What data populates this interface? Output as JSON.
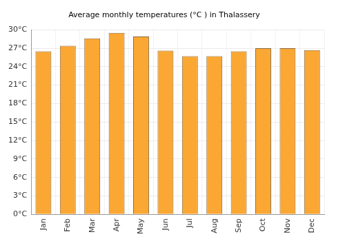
{
  "chart_data": {
    "type": "bar",
    "title": "Average monthly temperatures (°C ) in Thalassery",
    "categories": [
      "Jan",
      "Feb",
      "Mar",
      "Apr",
      "May",
      "Jun",
      "Jul",
      "Aug",
      "Sep",
      "Oct",
      "Nov",
      "Dec"
    ],
    "values": [
      26.5,
      27.4,
      28.6,
      29.5,
      28.9,
      26.6,
      25.7,
      25.7,
      26.5,
      27.0,
      27.0,
      26.7
    ],
    "color": "#fba733",
    "ylim": [
      0,
      30
    ],
    "yticks": [
      {
        "value": 0,
        "label": "0°C"
      },
      {
        "value": 3,
        "label": "3°C"
      },
      {
        "value": 6,
        "label": "6°C"
      },
      {
        "value": 9,
        "label": "9°C"
      },
      {
        "value": 12,
        "label": "12°C"
      },
      {
        "value": 15,
        "label": "15°C"
      },
      {
        "value": 18,
        "label": "18°C"
      },
      {
        "value": 21,
        "label": "21°C"
      },
      {
        "value": 24,
        "label": "24°C"
      },
      {
        "value": 27,
        "label": "27°C"
      },
      {
        "value": 30,
        "label": "30°C"
      }
    ],
    "grid": true
  }
}
